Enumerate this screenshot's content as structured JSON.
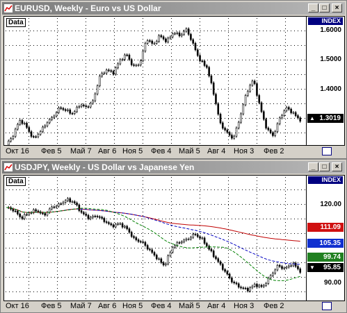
{
  "colors": {
    "tag_black": "#000000",
    "tag_red": "#d01010",
    "tag_blue": "#1030d0",
    "tag_green": "#208020",
    "ma_red": "#c00000",
    "ma_blue": "#0000c0",
    "ma_green": "#008000",
    "index_bg": "#000080"
  },
  "panels": [
    {
      "title": "EURUSD, Weekly - Euro vs US Dollar",
      "data_label": "Data",
      "index_label": "INDEX",
      "y_ticks": [
        "1.6000",
        "1.5000",
        "1.4000"
      ],
      "x_ticks": [
        "Окт 16",
        "Фев 5",
        "Май 7",
        "Авг 6",
        "Ноя 5",
        "Фев 4",
        "Май 5",
        "Авг 4",
        "Ноя 3",
        "Фев 2"
      ],
      "tags": [
        {
          "value": "1.3019",
          "arrow": "▲",
          "color": "#000000"
        }
      ]
    },
    {
      "title": "USDJPY, Weekly - US Dollar vs Japanese Yen",
      "data_label": "Data",
      "index_label": "INDEX",
      "y_ticks": [
        "120.00",
        "90.00"
      ],
      "x_ticks": [
        "Окт 16",
        "Фев 5",
        "Май 7",
        "Авг 6",
        "Ноя 5",
        "Фев 4",
        "Май 5",
        "Авг 4",
        "Ноя 3",
        "Фев 2"
      ],
      "tags": [
        {
          "value": "111.09",
          "arrow": "",
          "color": "#d01010"
        },
        {
          "value": "105.35",
          "arrow": "",
          "color": "#1030d0"
        },
        {
          "value": "99.74",
          "arrow": "",
          "color": "#208020"
        },
        {
          "value": "95.85",
          "arrow": "▼",
          "color": "#000000"
        }
      ]
    }
  ],
  "chart_data": [
    {
      "type": "candlestick",
      "series": [
        {
          "values": [
            1.23,
            1.26,
            1.31,
            1.29,
            1.25,
            1.27,
            1.3,
            1.32,
            1.35,
            1.34,
            1.33,
            1.36,
            1.35,
            1.37,
            1.45,
            1.47,
            1.46,
            1.5,
            1.52,
            1.48,
            1.49,
            1.57,
            1.55,
            1.58,
            1.56,
            1.59,
            1.58,
            1.6,
            1.55,
            1.5,
            1.48,
            1.4,
            1.3,
            1.27,
            1.25,
            1.32,
            1.4,
            1.44,
            1.35,
            1.28,
            1.26,
            1.32,
            1.35,
            1.33,
            1.31
          ]
        }
      ],
      "ylim": [
        1.23,
        1.64
      ]
    },
    {
      "type": "candlestick",
      "series": [
        {
          "values": [
            120,
            119,
            116,
            118,
            119,
            117,
            120,
            121,
            123,
            122,
            118,
            116,
            117,
            115,
            113,
            114,
            112,
            108,
            107,
            104,
            101,
            98,
            105,
            107,
            108,
            110,
            108,
            104,
            100,
            96,
            92,
            90,
            89,
            91,
            90,
            94,
            98,
            97,
            99,
            96
          ]
        }
      ],
      "ylim": [
        85,
        132
      ]
    }
  ]
}
